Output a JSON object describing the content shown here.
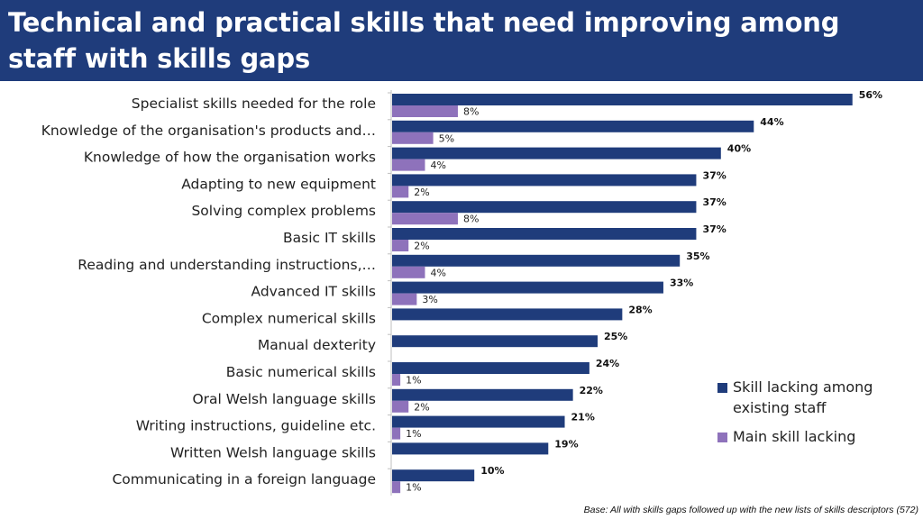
{
  "title": "Technical and practical skills that need improving among staff with skills gaps",
  "footnote": "Base: All with skills gaps followed up with the new lists of skills descriptors (572)",
  "colors": {
    "header_bg": "#1f3c7b",
    "series1": "#1f3c7b",
    "series2": "#8e72bb"
  },
  "chart_data": {
    "type": "bar",
    "orientation": "horizontal",
    "categories": [
      "Specialist skills needed for the role",
      "Knowledge of the organisation's products and…",
      "Knowledge of how the organisation works",
      "Adapting to new equipment",
      "Solving complex problems",
      "Basic IT skills",
      "Reading and understanding instructions,…",
      "Advanced IT skills",
      "Complex numerical skills",
      "Manual dexterity",
      "Basic numerical skills",
      "Oral Welsh language skills",
      "Writing instructions, guideline etc.",
      "Written Welsh language skills",
      "Communicating in a foreign language"
    ],
    "series": [
      {
        "name": "Skill lacking among existing staff",
        "color": "#1f3c7b",
        "values": [
          56,
          44,
          40,
          37,
          37,
          37,
          35,
          33,
          28,
          25,
          24,
          22,
          21,
          19,
          10
        ]
      },
      {
        "name": "Main skill lacking",
        "color": "#8e72bb",
        "values": [
          8,
          5,
          4,
          2,
          8,
          2,
          4,
          3,
          null,
          null,
          1,
          2,
          1,
          null,
          1
        ]
      }
    ],
    "value_suffix": "%",
    "xlim": [
      0,
      60
    ],
    "grid": false,
    "legend_position": "right"
  }
}
